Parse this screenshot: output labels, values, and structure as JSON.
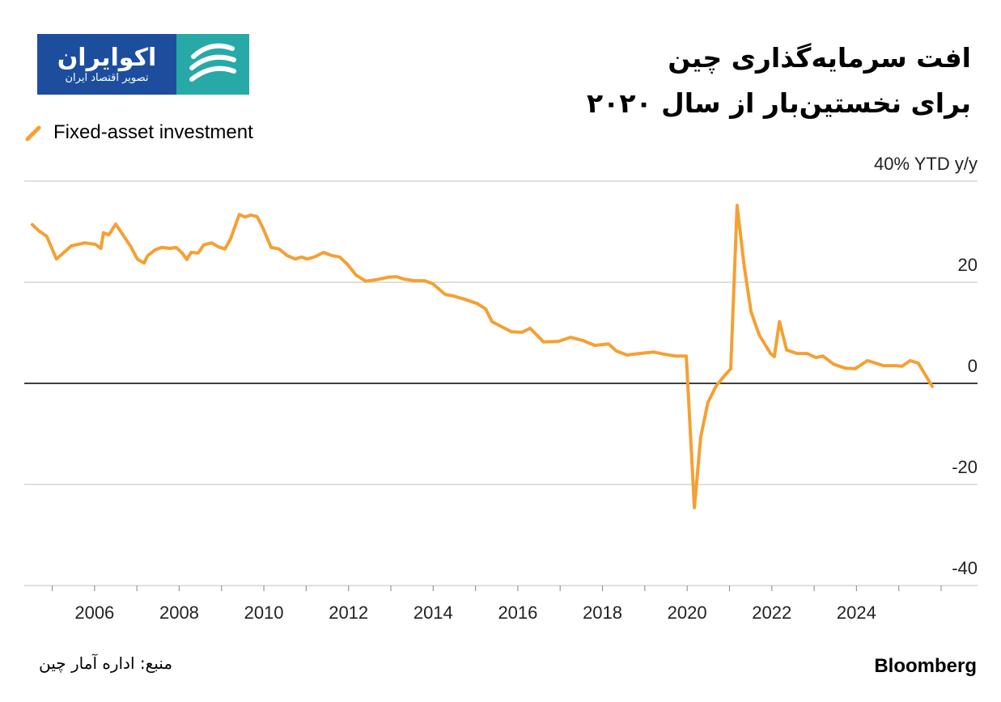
{
  "logo": {
    "name": "اکوایران",
    "tagline": "تصویر اقتصاد ایران"
  },
  "title_lines": [
    "افت سرمایه‌گذاری چین",
    "برای نخستین‌بار از سال ۲۰۲۰"
  ],
  "source": "منبع: اداره آمار چین",
  "brand": "Bloomberg",
  "colors": {
    "series": "#f5a033",
    "grid": "#cccccc",
    "zero_line": "#000000",
    "logo_blue": "#1d4e9e",
    "logo_teal": "#27a9a8"
  },
  "chart_data": {
    "type": "line",
    "title": "",
    "xlabel": "",
    "ylabel": "YTD y/y",
    "legend_position": "top-left",
    "grid": true,
    "xlim": [
      2004.34,
      2026.86
    ],
    "ylim": [
      -40,
      40
    ],
    "x_ticks": [
      2006,
      2008,
      2010,
      2012,
      2014,
      2016,
      2018,
      2020,
      2022,
      2024
    ],
    "x_tick_labels": [
      "2006",
      "2008",
      "2010",
      "2012",
      "2014",
      "2016",
      "2018",
      "2020",
      "2022",
      "2024"
    ],
    "y_ticks": [
      40,
      20,
      0,
      -20,
      -40
    ],
    "y_tick_labels": [
      "40% YTD y/y",
      "20",
      "0",
      "-20",
      "-40"
    ],
    "series": [
      {
        "name": "Fixed-asset investment",
        "x": [
          2004.53,
          2004.68,
          2004.87,
          2005.1,
          2005.45,
          2005.77,
          2006.02,
          2006.15,
          2006.21,
          2006.34,
          2006.5,
          2006.67,
          2006.86,
          2007.01,
          2007.17,
          2007.26,
          2007.43,
          2007.59,
          2007.78,
          2007.93,
          2008.07,
          2008.18,
          2008.28,
          2008.45,
          2008.58,
          2008.77,
          2008.93,
          2009.08,
          2009.21,
          2009.42,
          2009.56,
          2009.69,
          2009.84,
          2009.98,
          2010.17,
          2010.36,
          2010.55,
          2010.74,
          2010.89,
          2011.03,
          2011.22,
          2011.41,
          2011.6,
          2011.79,
          2011.98,
          2012.18,
          2012.41,
          2012.65,
          2012.94,
          2013.13,
          2013.32,
          2013.55,
          2013.8,
          2013.99,
          2014.13,
          2014.28,
          2014.47,
          2014.76,
          2015.04,
          2015.24,
          2015.39,
          2015.62,
          2015.85,
          2016.1,
          2016.29,
          2016.42,
          2016.61,
          2016.96,
          2017.24,
          2017.53,
          2017.82,
          2018.14,
          2018.33,
          2018.58,
          2018.87,
          2019.21,
          2019.44,
          2019.73,
          2019.98,
          2020.17,
          2020.32,
          2020.49,
          2020.68,
          2020.87,
          2021.03,
          2021.18,
          2021.35,
          2021.51,
          2021.7,
          2021.97,
          2022.06,
          2022.18,
          2022.35,
          2022.6,
          2022.83,
          2023.04,
          2023.21,
          2023.46,
          2023.74,
          2023.97,
          2024.26,
          2024.64,
          2024.93,
          2025.08,
          2025.27,
          2025.46,
          2025.79
        ],
        "y": [
          31.4,
          30.2,
          29.1,
          24.6,
          27.2,
          27.8,
          27.5,
          26.7,
          29.8,
          29.4,
          31.5,
          29.4,
          27.0,
          24.6,
          23.8,
          25.3,
          26.4,
          26.9,
          26.7,
          26.9,
          25.8,
          24.5,
          25.9,
          25.8,
          27.4,
          27.8,
          27.0,
          26.6,
          28.5,
          33.4,
          32.9,
          33.3,
          33.0,
          30.7,
          26.9,
          26.6,
          25.3,
          24.6,
          25.0,
          24.6,
          25.1,
          25.9,
          25.3,
          25.0,
          23.5,
          21.4,
          20.2,
          20.5,
          21.0,
          21.1,
          20.6,
          20.3,
          20.3,
          19.7,
          18.7,
          17.6,
          17.3,
          16.6,
          15.8,
          14.7,
          12.2,
          11.2,
          10.2,
          10.1,
          10.9,
          9.8,
          8.2,
          8.3,
          9.1,
          8.5,
          7.5,
          7.8,
          6.4,
          5.6,
          5.9,
          6.2,
          5.8,
          5.4,
          5.4,
          -24.6,
          -10.6,
          -3.8,
          -0.6,
          1.4,
          2.9,
          35.2,
          23.0,
          14.2,
          9.6,
          5.9,
          5.3,
          12.2,
          6.6,
          5.9,
          5.9,
          5.1,
          5.4,
          3.8,
          3.0,
          2.9,
          4.5,
          3.5,
          3.5,
          3.4,
          4.5,
          4.0,
          -0.6
        ]
      }
    ]
  }
}
